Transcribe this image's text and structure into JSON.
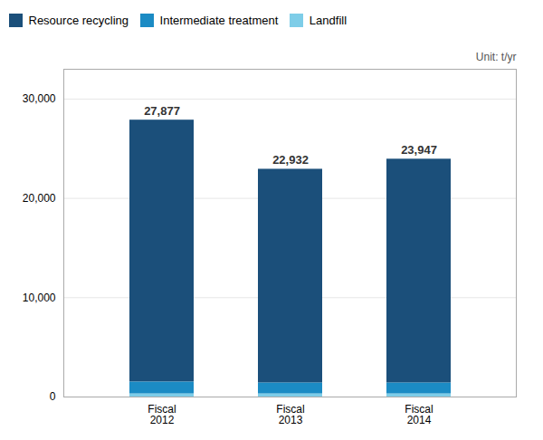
{
  "chart_data": {
    "type": "bar",
    "stacked": true,
    "categories": [
      "Fiscal\n2012",
      "Fiscal\n2013",
      "Fiscal\n2014"
    ],
    "series": [
      {
        "name": "Resource recycling",
        "color": "#1b4f7a",
        "values": [
          26377,
          21532,
          22547
        ]
      },
      {
        "name": "Intermediate treatment",
        "color": "#1b8bc4",
        "values": [
          1200,
          1100,
          1100
        ]
      },
      {
        "name": "Landfill",
        "color": "#7ecde8",
        "values": [
          300,
          300,
          300
        ]
      }
    ],
    "totals": [
      27877,
      22932,
      23947
    ],
    "total_labels": [
      "27,877",
      "22,932",
      "23,947"
    ],
    "ylabel": "Unit: t/yr",
    "ylim": [
      0,
      33000
    ],
    "yticks": [
      0,
      {
        "value": 10000,
        "label": "10,000"
      },
      {
        "value": 20000,
        "label": "20,000"
      },
      {
        "value": 30000,
        "label": "30,000"
      }
    ],
    "grid": true,
    "legend": "top"
  }
}
